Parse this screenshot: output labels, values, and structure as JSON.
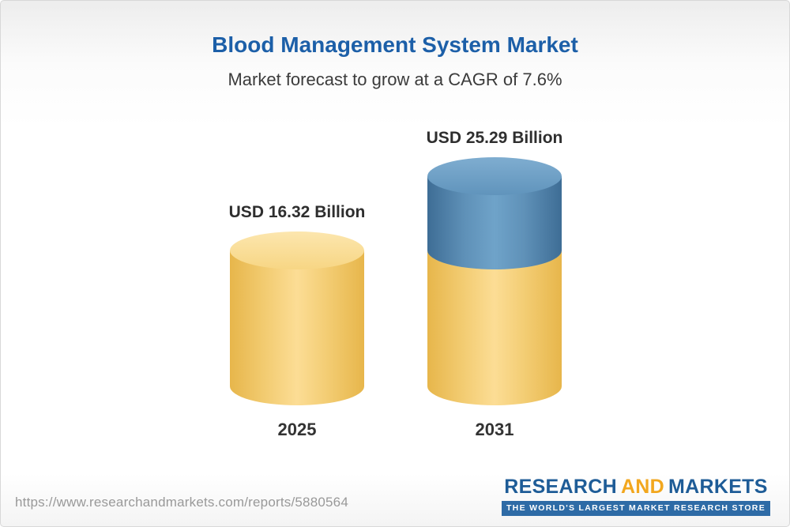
{
  "chart_data": {
    "type": "bar",
    "variant": "3d-cylinder-stacked",
    "title": "Blood Management System Market",
    "subtitle": "Market forecast to grow at a CAGR of 7.6%",
    "cagr_percent": 7.6,
    "unit": "USD Billion",
    "categories": [
      "2025",
      "2031"
    ],
    "values": [
      16.32,
      25.29
    ],
    "value_labels": [
      "USD 16.32 Billion",
      "USD 25.29 Billion"
    ],
    "series_note": "2031 bar shows the 2025 base in gold plus forecast growth increment in blue",
    "ylim": [
      0,
      25.29
    ],
    "legend": "none",
    "grid": false,
    "colors": {
      "title": "#1c5fa8",
      "base_segment": "#f6cd6d",
      "growth_segment": "#5585ad",
      "label_text": "#2e2e2e"
    }
  },
  "footer": {
    "report_url": "https://www.researchandmarkets.com/reports/5880564",
    "logo": {
      "research": "RESEARCH",
      "and": "AND",
      "markets": "MARKETS",
      "tagline": "THE WORLD'S LARGEST MARKET RESEARCH STORE"
    }
  }
}
